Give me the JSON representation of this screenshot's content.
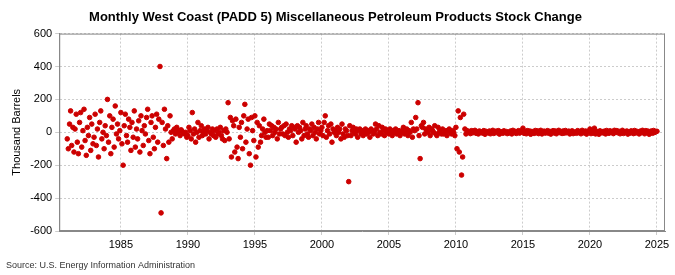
{
  "chart_data": {
    "type": "scatter",
    "title": "Monthly West Coast (PADD 5) Miscellaneous Petroleum Products Stock Change",
    "y_label": "Thousand Barrels",
    "source": "Source: U.S. Energy Information Administration",
    "color": "#cc0000",
    "marker": "circle",
    "grid": true,
    "xlim": [
      1980.4,
      2025.6
    ],
    "xticks": [
      1985,
      1990,
      1995,
      2000,
      2005,
      2010,
      2015,
      2020,
      2025
    ],
    "ylim": [
      -600,
      600
    ],
    "yticks": [
      -600,
      -400,
      -200,
      0,
      200,
      400,
      600
    ],
    "x": [
      1981,
      1981.08,
      1981.17,
      1981.25,
      1981.33,
      1981.42,
      1981.5,
      1981.58,
      1981.67,
      1981.75,
      1981.83,
      1981.92,
      1982,
      1982.08,
      1982.17,
      1982.25,
      1982.33,
      1982.42,
      1982.5,
      1982.58,
      1982.67,
      1982.75,
      1982.83,
      1982.92,
      1983,
      1983.08,
      1983.17,
      1983.25,
      1983.33,
      1983.42,
      1983.5,
      1983.58,
      1983.67,
      1983.75,
      1983.83,
      1983.92,
      1984,
      1984.08,
      1984.17,
      1984.25,
      1984.33,
      1984.42,
      1984.5,
      1984.58,
      1984.67,
      1984.75,
      1984.83,
      1984.92,
      1985,
      1985.08,
      1985.17,
      1985.25,
      1985.33,
      1985.42,
      1985.5,
      1985.58,
      1985.67,
      1985.75,
      1985.83,
      1985.92,
      1986,
      1986.08,
      1986.17,
      1986.25,
      1986.33,
      1986.42,
      1986.5,
      1986.58,
      1986.67,
      1986.75,
      1986.83,
      1986.92,
      1987,
      1987.08,
      1987.17,
      1987.25,
      1987.33,
      1987.42,
      1987.5,
      1987.58,
      1987.67,
      1987.75,
      1987.83,
      1987.92,
      1988,
      1988.08,
      1988.17,
      1988.25,
      1988.33,
      1988.42,
      1988.5,
      1988.58,
      1988.67,
      1988.75,
      1988.83,
      1988.92,
      1989,
      1989.08,
      1989.17,
      1989.25,
      1989.33,
      1989.42,
      1989.5,
      1989.58,
      1989.67,
      1989.75,
      1989.83,
      1989.92,
      1990,
      1990.08,
      1990.17,
      1990.25,
      1990.33,
      1990.42,
      1990.5,
      1990.58,
      1990.67,
      1990.75,
      1990.83,
      1990.92,
      1991,
      1991.08,
      1991.17,
      1991.25,
      1991.33,
      1991.42,
      1991.5,
      1991.58,
      1991.67,
      1991.75,
      1991.83,
      1991.92,
      1992,
      1992.08,
      1992.17,
      1992.25,
      1992.33,
      1992.42,
      1992.5,
      1992.58,
      1992.67,
      1992.75,
      1992.83,
      1992.92,
      1993,
      1993.08,
      1993.17,
      1993.25,
      1993.33,
      1993.42,
      1993.5,
      1993.58,
      1993.67,
      1993.75,
      1993.83,
      1993.92,
      1994,
      1994.08,
      1994.17,
      1994.25,
      1994.33,
      1994.42,
      1994.5,
      1994.58,
      1994.67,
      1994.75,
      1994.83,
      1994.92,
      1995,
      1995.08,
      1995.17,
      1995.25,
      1995.33,
      1995.42,
      1995.5,
      1995.58,
      1995.67,
      1995.75,
      1995.83,
      1995.92,
      1996,
      1996.08,
      1996.17,
      1996.25,
      1996.33,
      1996.42,
      1996.5,
      1996.58,
      1996.67,
      1996.75,
      1996.83,
      1996.92,
      1997,
      1997.08,
      1997.17,
      1997.25,
      1997.33,
      1997.42,
      1997.5,
      1997.58,
      1997.67,
      1997.75,
      1997.83,
      1997.92,
      1998,
      1998.08,
      1998.17,
      1998.25,
      1998.33,
      1998.42,
      1998.5,
      1998.58,
      1998.67,
      1998.75,
      1998.83,
      1998.92,
      1999,
      1999.08,
      1999.17,
      1999.25,
      1999.33,
      1999.42,
      1999.5,
      1999.58,
      1999.67,
      1999.75,
      1999.83,
      1999.92,
      2000,
      2000.08,
      2000.17,
      2000.25,
      2000.33,
      2000.42,
      2000.5,
      2000.58,
      2000.67,
      2000.75,
      2000.83,
      2000.92,
      2001,
      2001.08,
      2001.17,
      2001.25,
      2001.33,
      2001.42,
      2001.5,
      2001.58,
      2001.67,
      2001.75,
      2001.83,
      2001.92,
      2002,
      2002.08,
      2002.17,
      2002.25,
      2002.33,
      2002.42,
      2002.5,
      2002.58,
      2002.67,
      2002.75,
      2002.83,
      2002.92,
      2003,
      2003.08,
      2003.17,
      2003.25,
      2003.33,
      2003.42,
      2003.5,
      2003.58,
      2003.67,
      2003.75,
      2003.83,
      2003.92,
      2004,
      2004.08,
      2004.17,
      2004.25,
      2004.33,
      2004.42,
      2004.5,
      2004.58,
      2004.67,
      2004.75,
      2004.83,
      2004.92,
      2005,
      2005.08,
      2005.17,
      2005.25,
      2005.33,
      2005.42,
      2005.5,
      2005.58,
      2005.67,
      2005.75,
      2005.83,
      2005.92,
      2006,
      2006.08,
      2006.17,
      2006.25,
      2006.33,
      2006.42,
      2006.5,
      2006.58,
      2006.67,
      2006.75,
      2006.83,
      2006.92,
      2007,
      2007.08,
      2007.17,
      2007.25,
      2007.33,
      2007.42,
      2007.5,
      2007.58,
      2007.67,
      2007.75,
      2007.83,
      2007.92,
      2008,
      2008.08,
      2008.17,
      2008.25,
      2008.33,
      2008.42,
      2008.5,
      2008.58,
      2008.67,
      2008.75,
      2008.83,
      2008.92,
      2009,
      2009.08,
      2009.17,
      2009.25,
      2009.33,
      2009.42,
      2009.5,
      2009.58,
      2009.67,
      2009.75,
      2009.83,
      2009.92,
      2010,
      2010.08,
      2010.17,
      2010.25,
      2010.33,
      2010.42,
      2010.5,
      2010.58,
      2010.67,
      2010.75,
      2010.83,
      2010.92,
      2011,
      2011.08,
      2011.17,
      2011.25,
      2011.33,
      2011.42,
      2011.5,
      2011.58,
      2011.67,
      2011.75,
      2011.83,
      2011.92,
      2012,
      2012.08,
      2012.17,
      2012.25,
      2012.33,
      2012.42,
      2012.5,
      2012.58,
      2012.67,
      2012.75,
      2012.83,
      2012.92,
      2013,
      2013.08,
      2013.17,
      2013.25,
      2013.33,
      2013.42,
      2013.5,
      2013.58,
      2013.67,
      2013.75,
      2013.83,
      2013.92,
      2014,
      2014.08,
      2014.17,
      2014.25,
      2014.33,
      2014.42,
      2014.5,
      2014.58,
      2014.67,
      2014.75,
      2014.83,
      2014.92,
      2015,
      2015.08,
      2015.17,
      2015.25,
      2015.33,
      2015.42,
      2015.5,
      2015.58,
      2015.67,
      2015.75,
      2015.83,
      2015.92,
      2016,
      2016.08,
      2016.17,
      2016.25,
      2016.33,
      2016.42,
      2016.5,
      2016.58,
      2016.67,
      2016.75,
      2016.83,
      2016.92,
      2017,
      2017.08,
      2017.17,
      2017.25,
      2017.33,
      2017.42,
      2017.5,
      2017.58,
      2017.67,
      2017.75,
      2017.83,
      2017.92,
      2018,
      2018.08,
      2018.17,
      2018.25,
      2018.33,
      2018.42,
      2018.5,
      2018.58,
      2018.67,
      2018.75,
      2018.83,
      2018.92,
      2019,
      2019.08,
      2019.17,
      2019.25,
      2019.33,
      2019.42,
      2019.5,
      2019.58,
      2019.67,
      2019.75,
      2019.83,
      2019.92,
      2020,
      2020.08,
      2020.17,
      2020.25,
      2020.33,
      2020.42,
      2020.5,
      2020.58,
      2020.67,
      2020.75,
      2020.83,
      2020.92,
      2021,
      2021.08,
      2021.17,
      2021.25,
      2021.33,
      2021.42,
      2021.5,
      2021.58,
      2021.67,
      2021.75,
      2021.83,
      2021.92,
      2022,
      2022.08,
      2022.17,
      2022.25,
      2022.33,
      2022.42,
      2022.5,
      2022.58,
      2022.67,
      2022.75,
      2022.83,
      2022.92,
      2023,
      2023.08,
      2023.17,
      2023.25,
      2023.33,
      2023.42,
      2023.5,
      2023.58,
      2023.67,
      2023.75,
      2023.83,
      2023.92,
      2024,
      2024.08,
      2024.17,
      2024.25,
      2024.33,
      2024.42,
      2024.5,
      2024.58,
      2024.67,
      2024.75,
      2024.83,
      2024.92,
      2025
    ],
    "values": [
      -40,
      -100,
      50,
      130,
      -80,
      30,
      -120,
      20,
      110,
      -60,
      -130,
      60,
      120,
      -90,
      10,
      140,
      -50,
      -140,
      30,
      -20,
      90,
      -110,
      50,
      -70,
      -30,
      110,
      -80,
      20,
      -150,
      60,
      130,
      -40,
      0,
      -100,
      40,
      -20,
      200,
      -60,
      100,
      -130,
      30,
      80,
      -90,
      160,
      -10,
      50,
      -40,
      10,
      120,
      -70,
      -200,
      40,
      110,
      -20,
      -60,
      80,
      30,
      -110,
      60,
      -30,
      130,
      -90,
      20,
      -40,
      70,
      -120,
      100,
      10,
      -80,
      40,
      -10,
      90,
      140,
      -50,
      -130,
      60,
      100,
      -30,
      -100,
      30,
      110,
      -60,
      80,
      400,
      -490,
      60,
      -80,
      140,
      20,
      -160,
      40,
      -60,
      100,
      0,
      -40,
      10,
      20,
      -10,
      30,
      0,
      10,
      -20,
      15,
      5,
      -5,
      -10,
      0,
      -30,
      -20,
      30,
      10,
      -40,
      120,
      -10,
      20,
      -60,
      0,
      60,
      -30,
      10,
      40,
      -20,
      0,
      20,
      -10,
      10,
      30,
      -40,
      0,
      -10,
      20,
      -20,
      10,
      -30,
      20,
      -10,
      0,
      30,
      -20,
      -40,
      10,
      -50,
      20,
      0,
      180,
      -40,
      90,
      -150,
      70,
      40,
      -120,
      80,
      -90,
      -160,
      30,
      -30,
      60,
      -100,
      100,
      170,
      -60,
      20,
      80,
      -130,
      -200,
      90,
      10,
      -50,
      100,
      -150,
      60,
      -90,
      40,
      -60,
      -20,
      20,
      80,
      0,
      -30,
      10,
      -30,
      50,
      10,
      40,
      -20,
      30,
      0,
      20,
      -40,
      60,
      -10,
      20,
      30,
      -10,
      40,
      -20,
      50,
      0,
      -30,
      20,
      10,
      40,
      -20,
      30,
      20,
      -60,
      40,
      0,
      30,
      10,
      -40,
      60,
      -20,
      20,
      40,
      -10,
      -30,
      20,
      10,
      50,
      -20,
      30,
      0,
      -40,
      20,
      60,
      -10,
      10,
      30,
      -20,
      60,
      100,
      -30,
      10,
      40,
      -10,
      50,
      -60,
      20,
      0,
      10,
      -20,
      30,
      0,
      20,
      -40,
      50,
      -10,
      -30,
      20,
      10,
      -20,
      -300,
      40,
      -20,
      10,
      30,
      0,
      -10,
      20,
      -30,
      10,
      20,
      -10,
      10,
      -20,
      0,
      20,
      -10,
      10,
      0,
      -30,
      20,
      10,
      -10,
      0,
      50,
      20,
      -20,
      40,
      0,
      -10,
      30,
      10,
      -20,
      20,
      0,
      10,
      -10,
      20,
      0,
      -20,
      10,
      0,
      20,
      -10,
      0,
      10,
      -20,
      0,
      10,
      30,
      -10,
      0,
      20,
      -20,
      10,
      0,
      60,
      -30,
      20,
      10,
      90,
      20,
      180,
      -20,
      -160,
      40,
      30,
      60,
      -10,
      20,
      10,
      0,
      30,
      -20,
      20,
      10,
      0,
      40,
      -10,
      -20,
      30,
      0,
      10,
      -10,
      20,
      -10,
      0,
      10,
      -20,
      10,
      20,
      0,
      -10,
      10,
      0,
      -20,
      30,
      -100,
      130,
      -120,
      90,
      -260,
      -150,
      110,
      20,
      -10,
      10,
      0,
      5,
      -8,
      10,
      -3,
      0,
      12,
      -6,
      4,
      -10,
      8,
      -2,
      3,
      -5,
      10,
      -12,
      6,
      0,
      -4,
      8,
      -9,
      3,
      12,
      -7,
      2,
      7,
      -3,
      10,
      -11,
      4,
      0,
      -6,
      9,
      -2,
      5,
      -8,
      1,
      -4,
      8,
      -10,
      12,
      -1,
      6,
      -7,
      3,
      10,
      -5,
      0,
      9,
      25,
      -6,
      4,
      -9,
      10,
      -2,
      8,
      -12,
      5,
      0,
      -7,
      11,
      -3,
      9,
      -8,
      5,
      12,
      -10,
      2,
      7,
      -5,
      0,
      10,
      -6,
      6,
      -11,
      3,
      10,
      -4,
      8,
      -9,
      0,
      12,
      -2,
      5,
      -7,
      8,
      -5,
      11,
      -3,
      0,
      7,
      -10,
      4,
      9,
      -8,
      2,
      -1,
      -6,
      10,
      -2,
      5,
      -9,
      12,
      0,
      -4,
      8,
      -11,
      3,
      6,
      20,
      -8,
      12,
      -5,
      25,
      -10,
      6,
      0,
      -12,
      9,
      -3,
      4,
      -4,
      7,
      -10,
      11,
      2,
      -6,
      9,
      -1,
      5,
      -8,
      12,
      0,
      10,
      -3,
      6,
      -9,
      0,
      12,
      -7,
      4,
      -2,
      8,
      -11,
      3,
      -5,
      9,
      2,
      -8,
      11,
      -4,
      6,
      0,
      -10,
      7,
      -3,
      12,
      4,
      -9,
      10,
      -2,
      7,
      -12,
      0,
      8,
      -6,
      11,
      -1,
      5,
      6
    ]
  }
}
